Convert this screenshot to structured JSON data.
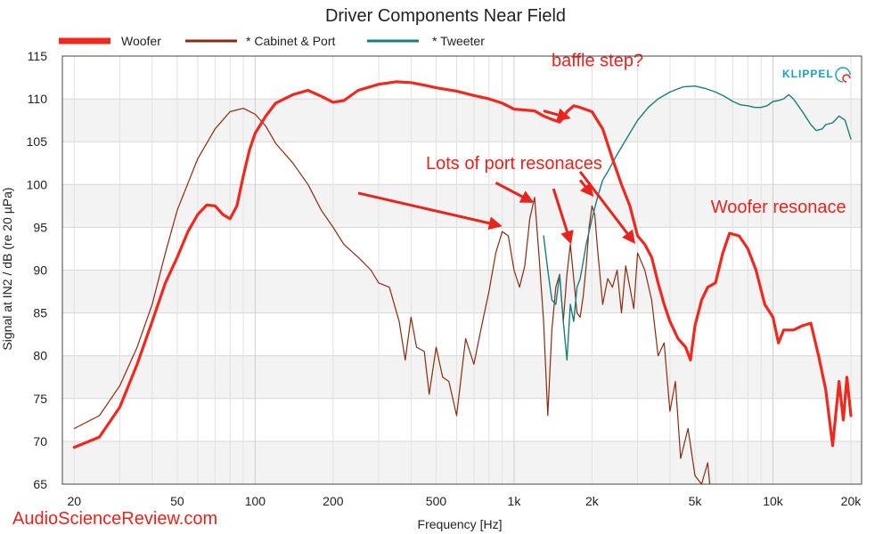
{
  "chart_data": {
    "type": "line",
    "title": "Driver Components Near Field",
    "xlabel": "Frequency [Hz]",
    "ylabel": "Signal at IN2 / dB (re 20 µPa)",
    "xscale": "log",
    "xlim": [
      18,
      22000
    ],
    "ylim": [
      65,
      115
    ],
    "grid": true,
    "legend_position": "top-left",
    "x_ticks": [
      {
        "value": 20,
        "label": "20"
      },
      {
        "value": 50,
        "label": "50"
      },
      {
        "value": 100,
        "label": "100"
      },
      {
        "value": 200,
        "label": "200"
      },
      {
        "value": 500,
        "label": "500"
      },
      {
        "value": 1000,
        "label": "1k"
      },
      {
        "value": 2000,
        "label": "2k"
      },
      {
        "value": 5000,
        "label": "5k"
      },
      {
        "value": 10000,
        "label": "10k"
      },
      {
        "value": 20000,
        "label": "20k"
      }
    ],
    "y_ticks": [
      65,
      70,
      75,
      80,
      85,
      90,
      95,
      100,
      105,
      110,
      115
    ],
    "series": [
      {
        "name": "Woofer",
        "color": "#f0281e",
        "width": 3.2,
        "points": [
          [
            20,
            69.3
          ],
          [
            25,
            70.5
          ],
          [
            30,
            74.0
          ],
          [
            35,
            79.0
          ],
          [
            40,
            84.0
          ],
          [
            45,
            88.5
          ],
          [
            50,
            91.5
          ],
          [
            55,
            94.5
          ],
          [
            60,
            96.5
          ],
          [
            65,
            97.6
          ],
          [
            70,
            97.5
          ],
          [
            75,
            96.5
          ],
          [
            80,
            96.0
          ],
          [
            85,
            97.5
          ],
          [
            90,
            101.0
          ],
          [
            95,
            104.0
          ],
          [
            100,
            106.0
          ],
          [
            110,
            108.0
          ],
          [
            120,
            109.5
          ],
          [
            140,
            110.5
          ],
          [
            160,
            111.0
          ],
          [
            180,
            110.3
          ],
          [
            200,
            109.6
          ],
          [
            220,
            109.8
          ],
          [
            250,
            111.0
          ],
          [
            300,
            111.7
          ],
          [
            350,
            112.0
          ],
          [
            400,
            111.9
          ],
          [
            450,
            111.6
          ],
          [
            500,
            111.3
          ],
          [
            600,
            110.9
          ],
          [
            700,
            110.4
          ],
          [
            800,
            110.0
          ],
          [
            900,
            109.5
          ],
          [
            1000,
            108.8
          ],
          [
            1100,
            108.7
          ],
          [
            1200,
            108.6
          ],
          [
            1300,
            108.0
          ],
          [
            1400,
            107.6
          ],
          [
            1500,
            107.3
          ],
          [
            1550,
            107.8
          ],
          [
            1600,
            108.5
          ],
          [
            1700,
            109.2
          ],
          [
            1800,
            109.0
          ],
          [
            2000,
            108.5
          ],
          [
            2200,
            106.5
          ],
          [
            2400,
            103.0
          ],
          [
            2600,
            100.0
          ],
          [
            2800,
            97.5
          ],
          [
            3000,
            94.0
          ],
          [
            3200,
            93.0
          ],
          [
            3400,
            91.5
          ],
          [
            3600,
            88.5
          ],
          [
            3800,
            86.0
          ],
          [
            4000,
            84.0
          ],
          [
            4300,
            82.0
          ],
          [
            4600,
            81.0
          ],
          [
            4800,
            79.5
          ],
          [
            5000,
            83.5
          ],
          [
            5300,
            86.5
          ],
          [
            5600,
            88.0
          ],
          [
            6000,
            88.5
          ],
          [
            6400,
            92.0
          ],
          [
            6800,
            94.3
          ],
          [
            7400,
            94.0
          ],
          [
            8000,
            92.5
          ],
          [
            8600,
            90.0
          ],
          [
            9300,
            86.0
          ],
          [
            10000,
            84.5
          ],
          [
            10500,
            81.5
          ],
          [
            11000,
            83.0
          ],
          [
            12000,
            83.0
          ],
          [
            13000,
            83.5
          ],
          [
            14000,
            83.8
          ],
          [
            15000,
            80.0
          ],
          [
            16000,
            76.0
          ],
          [
            17000,
            69.5
          ],
          [
            18000,
            77.0
          ],
          [
            18700,
            72.5
          ],
          [
            19300,
            77.5
          ],
          [
            20000,
            73.0
          ]
        ]
      },
      {
        "name": "* Cabinet & Port",
        "color": "#8b2a0e",
        "width": 1.2,
        "points": [
          [
            20,
            71.5
          ],
          [
            25,
            73.0
          ],
          [
            30,
            76.5
          ],
          [
            35,
            81.0
          ],
          [
            40,
            86.0
          ],
          [
            45,
            92.0
          ],
          [
            50,
            97.0
          ],
          [
            60,
            103.0
          ],
          [
            70,
            106.5
          ],
          [
            80,
            108.5
          ],
          [
            90,
            108.9
          ],
          [
            100,
            108.2
          ],
          [
            110,
            106.8
          ],
          [
            120,
            104.8
          ],
          [
            140,
            102.5
          ],
          [
            160,
            100.0
          ],
          [
            180,
            97.0
          ],
          [
            200,
            95.0
          ],
          [
            220,
            93.0
          ],
          [
            250,
            91.5
          ],
          [
            280,
            90.0
          ],
          [
            300,
            88.5
          ],
          [
            330,
            88.0
          ],
          [
            360,
            84.0
          ],
          [
            380,
            79.5
          ],
          [
            400,
            84.5
          ],
          [
            420,
            81.0
          ],
          [
            450,
            80.5
          ],
          [
            470,
            75.5
          ],
          [
            500,
            81.0
          ],
          [
            530,
            77.5
          ],
          [
            560,
            77.0
          ],
          [
            600,
            73.0
          ],
          [
            650,
            82.0
          ],
          [
            700,
            79.0
          ],
          [
            750,
            83.5
          ],
          [
            800,
            87.5
          ],
          [
            850,
            92.0
          ],
          [
            900,
            94.5
          ],
          [
            950,
            94.0
          ],
          [
            1000,
            90.0
          ],
          [
            1050,
            88.0
          ],
          [
            1100,
            90.5
          ],
          [
            1150,
            96.0
          ],
          [
            1200,
            98.5
          ],
          [
            1250,
            91.5
          ],
          [
            1300,
            84.0
          ],
          [
            1350,
            73.0
          ],
          [
            1400,
            83.0
          ],
          [
            1450,
            88.0
          ],
          [
            1500,
            89.5
          ],
          [
            1550,
            84.0
          ],
          [
            1600,
            89.5
          ],
          [
            1650,
            93.0
          ],
          [
            1700,
            89.0
          ],
          [
            1750,
            85.0
          ],
          [
            1800,
            84.5
          ],
          [
            1850,
            87.0
          ],
          [
            1900,
            90.5
          ],
          [
            1950,
            95.0
          ],
          [
            2000,
            97.5
          ],
          [
            2050,
            96.5
          ],
          [
            2100,
            92.5
          ],
          [
            2200,
            86.0
          ],
          [
            2300,
            89.0
          ],
          [
            2400,
            88.0
          ],
          [
            2500,
            90.0
          ],
          [
            2600,
            85.0
          ],
          [
            2700,
            90.5
          ],
          [
            2800,
            88.0
          ],
          [
            2900,
            85.5
          ],
          [
            3000,
            92.0
          ],
          [
            3200,
            90.0
          ],
          [
            3400,
            86.5
          ],
          [
            3600,
            80.0
          ],
          [
            3800,
            81.5
          ],
          [
            4000,
            73.5
          ],
          [
            4200,
            77.0
          ],
          [
            4400,
            68.0
          ],
          [
            4700,
            71.5
          ],
          [
            5000,
            66.0
          ],
          [
            5300,
            65.0
          ],
          [
            5600,
            67.5
          ],
          [
            5700,
            65.0
          ]
        ]
      },
      {
        "name": "* Tweeter",
        "color": "#1a7d7a",
        "width": 1.4,
        "points": [
          [
            1300,
            94.0
          ],
          [
            1350,
            90.0
          ],
          [
            1400,
            86.5
          ],
          [
            1450,
            86.0
          ],
          [
            1500,
            89.5
          ],
          [
            1550,
            84.0
          ],
          [
            1600,
            79.5
          ],
          [
            1650,
            86.0
          ],
          [
            1700,
            84.0
          ],
          [
            1750,
            88.0
          ],
          [
            1800,
            89.0
          ],
          [
            1850,
            91.0
          ],
          [
            1900,
            93.0
          ],
          [
            2000,
            96.0
          ],
          [
            2100,
            98.5
          ],
          [
            2200,
            100.5
          ],
          [
            2300,
            101.5
          ],
          [
            2500,
            103.5
          ],
          [
            2800,
            106.0
          ],
          [
            3000,
            107.5
          ],
          [
            3300,
            109.0
          ],
          [
            3600,
            110.0
          ],
          [
            4000,
            110.8
          ],
          [
            4500,
            111.4
          ],
          [
            5000,
            111.5
          ],
          [
            5500,
            111.2
          ],
          [
            6000,
            110.8
          ],
          [
            6500,
            110.3
          ],
          [
            7000,
            109.7
          ],
          [
            7500,
            109.3
          ],
          [
            8000,
            109.2
          ],
          [
            8500,
            109.0
          ],
          [
            9000,
            109.0
          ],
          [
            9500,
            109.2
          ],
          [
            10000,
            109.7
          ],
          [
            10500,
            109.8
          ],
          [
            11000,
            110.0
          ],
          [
            11500,
            110.5
          ],
          [
            12000,
            110.0
          ],
          [
            13000,
            108.5
          ],
          [
            14000,
            107.0
          ],
          [
            14700,
            106.3
          ],
          [
            15500,
            106.5
          ],
          [
            16000,
            107.0
          ],
          [
            17000,
            107.2
          ],
          [
            18000,
            108.0
          ],
          [
            19000,
            107.5
          ],
          [
            20000,
            105.3
          ]
        ]
      }
    ],
    "annotations": [
      {
        "text": "baffle step?",
        "x": 2100,
        "y": 113.8
      },
      {
        "text": "Lots of port resonaces",
        "x": 1000,
        "y": 101.8
      },
      {
        "text": "Woofer resonace",
        "x": 10500,
        "y": 96.7
      }
    ],
    "arrows": [
      {
        "from": [
          1300,
          108.6
        ],
        "to": [
          1620,
          107.8
        ]
      },
      {
        "from": [
          250,
          99.0
        ],
        "to": [
          880,
          95.2
        ]
      },
      {
        "from": [
          850,
          100.2
        ],
        "to": [
          1170,
          98.0
        ]
      },
      {
        "from": [
          1420,
          99.5
        ],
        "to": [
          1650,
          93.3
        ]
      },
      {
        "from": [
          1800,
          100.5
        ],
        "to": [
          2000,
          98.8
        ]
      },
      {
        "from": [
          1800,
          101.5
        ],
        "to": [
          2900,
          93.3
        ]
      }
    ]
  },
  "watermark": "AudioScienceReview.com",
  "logo": "KLIPPEL"
}
